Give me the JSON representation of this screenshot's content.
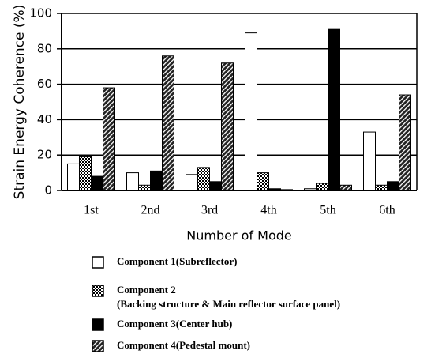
{
  "chart_data": {
    "type": "bar",
    "ylabel": "Strain Energy Coherence (%)",
    "xlabel": "Number of Mode",
    "categories": [
      "1st",
      "2nd",
      "3rd",
      "4th",
      "5th",
      "6th"
    ],
    "series": [
      {
        "name": "Component 1(Subreflector)",
        "color": "#ffffff",
        "pattern": "none",
        "values": [
          15,
          10,
          9,
          89,
          1,
          33
        ]
      },
      {
        "name": "Component 2",
        "description": "(Backing structure & Main reflector surface panel)",
        "color": "#888888",
        "pattern": "dots",
        "values": [
          19,
          3,
          13,
          10,
          4,
          3
        ]
      },
      {
        "name": "Component 3(Center hub)",
        "color": "#000000",
        "pattern": "solid",
        "values": [
          8,
          11,
          5,
          1,
          91,
          5
        ]
      },
      {
        "name": "Component 4(Pedestal mount)",
        "color": "#333333",
        "pattern": "hatch",
        "values": [
          58,
          76,
          72,
          0.5,
          3,
          54
        ]
      }
    ],
    "ylim": [
      0,
      100
    ],
    "yticks": [
      0,
      20,
      40,
      60,
      80,
      100
    ],
    "grid": true
  }
}
